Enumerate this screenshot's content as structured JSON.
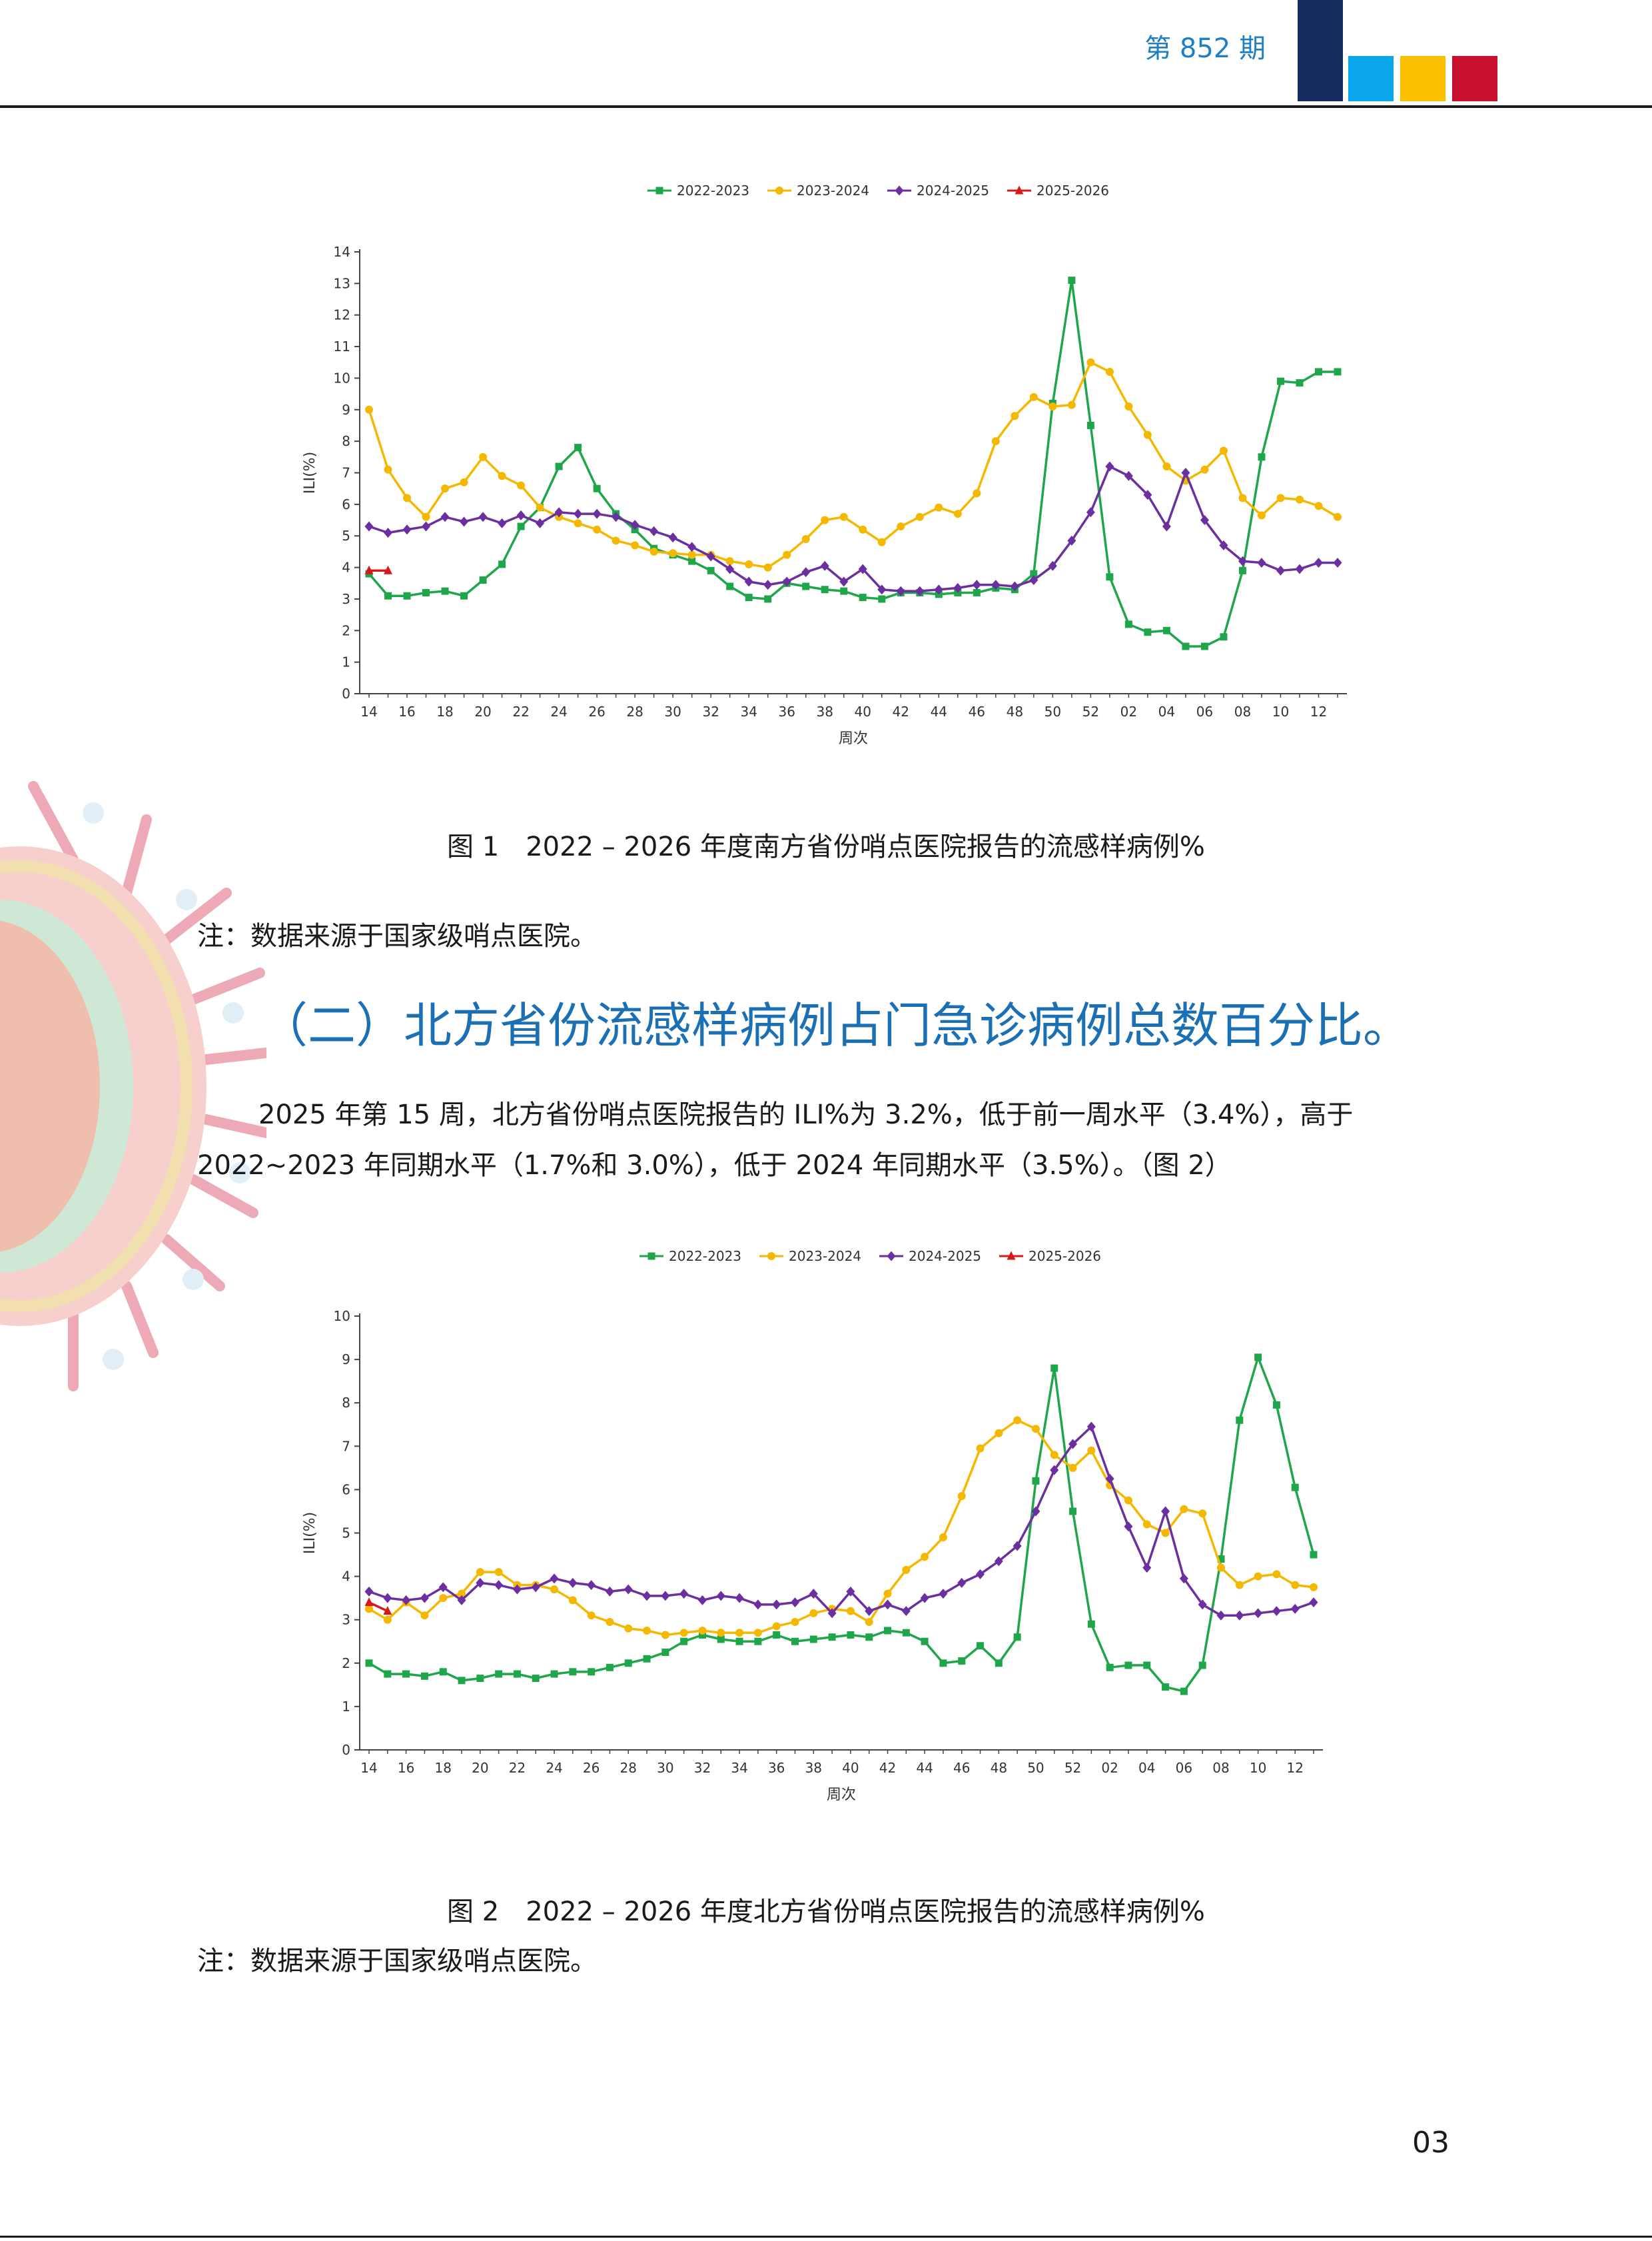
{
  "header": {
    "issue": "第 852 期",
    "bar_colors": [
      "#152a5e",
      "#0aa6ec",
      "#f9bf00",
      "#c8102e"
    ]
  },
  "figure1": {
    "caption": "图 1　2022 – 2026 年度南方省份哨点医院报告的流感样病例%",
    "note": "注：数据来源于国家级哨点医院。"
  },
  "section_heading": "（二）北方省份流感样病例占门急诊病例总数百分比。",
  "paragraph": "2025 年第 15 周，北方省份哨点医院报告的 ILI%为 3.2%，低于前一周水平（3.4%），高于 2022~2023 年同期水平（1.7%和 3.0%），低于 2024 年同期水平（3.5%）。（图 2）",
  "figure2": {
    "caption": "图 2　2022 – 2026 年度北方省份哨点医院报告的流感样病例%",
    "note": "注：数据来源于国家级哨点医院。"
  },
  "page_number": "03",
  "chart_data": [
    {
      "type": "line",
      "xlabel": "周次",
      "ylabel": "ILI(%)",
      "ylim": [
        0,
        14
      ],
      "y_ticks": [
        "0",
        "1",
        "2",
        "3",
        "4",
        "5",
        "6",
        "7",
        "8",
        "9",
        "10",
        "11",
        "12",
        "13",
        "14"
      ],
      "legend_position": "top",
      "x_tick_labels": [
        "14",
        "16",
        "18",
        "20",
        "22",
        "24",
        "26",
        "28",
        "30",
        "32",
        "34",
        "36",
        "38",
        "40",
        "42",
        "44",
        "46",
        "48",
        "50",
        "52",
        "02",
        "04",
        "06",
        "08",
        "10",
        "12"
      ],
      "series": [
        {
          "name": "2022-2023",
          "color": "#1fa64a",
          "marker": "square",
          "values": [
            3.8,
            3.1,
            3.1,
            3.2,
            3.25,
            3.1,
            3.6,
            4.1,
            5.3,
            5.9,
            7.2,
            7.8,
            6.5,
            5.7,
            5.2,
            4.6,
            4.4,
            4.2,
            3.9,
            3.4,
            3.05,
            3.0,
            3.5,
            3.4,
            3.3,
            3.25,
            3.05,
            3.0,
            3.2,
            3.2,
            3.15,
            3.2,
            3.2,
            3.35,
            3.3,
            3.8,
            9.2,
            13.1,
            8.5,
            3.7,
            2.2,
            1.95,
            2.0,
            1.5,
            1.5,
            1.8,
            3.9,
            7.5,
            9.9,
            9.85,
            10.2,
            10.2
          ]
        },
        {
          "name": "2023-2024",
          "color": "#f5b800",
          "marker": "circle",
          "values": [
            9.0,
            7.1,
            6.2,
            5.6,
            6.5,
            6.7,
            7.5,
            6.9,
            6.6,
            5.9,
            5.6,
            5.4,
            5.2,
            4.85,
            4.7,
            4.5,
            4.45,
            4.4,
            4.4,
            4.2,
            4.1,
            4.0,
            4.4,
            4.9,
            5.5,
            5.6,
            5.2,
            4.8,
            5.3,
            5.6,
            5.9,
            5.7,
            6.35,
            8.0,
            8.8,
            9.4,
            9.1,
            9.15,
            10.5,
            10.2,
            9.1,
            8.2,
            7.2,
            6.75,
            7.1,
            7.7,
            6.2,
            5.65,
            6.2,
            6.15,
            5.95,
            5.6
          ]
        },
        {
          "name": "2024-2025",
          "color": "#6b2fa0",
          "marker": "diamond",
          "values": [
            5.3,
            5.1,
            5.2,
            5.3,
            5.6,
            5.45,
            5.6,
            5.4,
            5.65,
            5.4,
            5.75,
            5.7,
            5.7,
            5.6,
            5.35,
            5.15,
            4.95,
            4.65,
            4.35,
            3.95,
            3.55,
            3.45,
            3.55,
            3.85,
            4.05,
            3.55,
            3.95,
            3.3,
            3.25,
            3.25,
            3.3,
            3.35,
            3.45,
            3.45,
            3.4,
            3.6,
            4.05,
            4.85,
            5.75,
            7.2,
            6.9,
            6.3,
            5.3,
            7.0,
            5.5,
            4.7,
            4.2,
            4.15,
            3.9,
            3.95,
            4.15,
            4.15
          ]
        },
        {
          "name": "2025-2026",
          "color": "#d7191c",
          "marker": "triangle",
          "values": [
            3.9,
            3.9
          ]
        }
      ]
    },
    {
      "type": "line",
      "xlabel": "周次",
      "ylabel": "ILI(%)",
      "ylim": [
        0,
        10
      ],
      "y_ticks": [
        "0",
        "1",
        "2",
        "3",
        "4",
        "5",
        "6",
        "7",
        "8",
        "9",
        "10"
      ],
      "legend_position": "top",
      "x_tick_labels": [
        "14",
        "16",
        "18",
        "20",
        "22",
        "24",
        "26",
        "28",
        "30",
        "32",
        "34",
        "36",
        "38",
        "40",
        "42",
        "44",
        "46",
        "48",
        "50",
        "52",
        "02",
        "04",
        "06",
        "08",
        "10",
        "12"
      ],
      "series": [
        {
          "name": "2022-2023",
          "color": "#1fa64a",
          "marker": "square",
          "values": [
            2.0,
            1.75,
            1.75,
            1.7,
            1.8,
            1.6,
            1.65,
            1.75,
            1.75,
            1.65,
            1.75,
            1.8,
            1.8,
            1.9,
            2.0,
            2.1,
            2.25,
            2.5,
            2.65,
            2.55,
            2.5,
            2.5,
            2.65,
            2.5,
            2.55,
            2.6,
            2.65,
            2.6,
            2.75,
            2.7,
            2.5,
            2.0,
            2.05,
            2.4,
            2.0,
            2.6,
            6.2,
            8.8,
            5.5,
            2.9,
            1.9,
            1.95,
            1.95,
            1.45,
            1.35,
            1.95,
            4.4,
            7.6,
            9.05,
            7.95,
            6.05,
            4.5
          ]
        },
        {
          "name": "2023-2024",
          "color": "#f5b800",
          "marker": "circle",
          "values": [
            3.25,
            3.0,
            3.4,
            3.1,
            3.5,
            3.6,
            4.1,
            4.1,
            3.8,
            3.8,
            3.7,
            3.45,
            3.1,
            2.95,
            2.8,
            2.75,
            2.65,
            2.7,
            2.75,
            2.7,
            2.7,
            2.7,
            2.85,
            2.95,
            3.15,
            3.25,
            3.2,
            2.95,
            3.6,
            4.15,
            4.45,
            4.9,
            5.85,
            6.95,
            7.3,
            7.6,
            7.4,
            6.8,
            6.5,
            6.9,
            6.1,
            5.75,
            5.2,
            5.0,
            5.55,
            5.45,
            4.2,
            3.8,
            4.0,
            4.05,
            3.8,
            3.75
          ]
        },
        {
          "name": "2024-2025",
          "color": "#6b2fa0",
          "marker": "diamond",
          "values": [
            3.65,
            3.5,
            3.45,
            3.5,
            3.75,
            3.45,
            3.85,
            3.8,
            3.7,
            3.75,
            3.95,
            3.85,
            3.8,
            3.65,
            3.7,
            3.55,
            3.55,
            3.6,
            3.45,
            3.55,
            3.5,
            3.35,
            3.35,
            3.4,
            3.6,
            3.15,
            3.65,
            3.2,
            3.35,
            3.2,
            3.5,
            3.6,
            3.85,
            4.05,
            4.35,
            4.7,
            5.5,
            6.45,
            7.05,
            7.45,
            6.25,
            5.15,
            4.2,
            5.5,
            3.95,
            3.35,
            3.1,
            3.1,
            3.15,
            3.2,
            3.25,
            3.4
          ]
        },
        {
          "name": "2025-2026",
          "color": "#d7191c",
          "marker": "triangle",
          "values": [
            3.4,
            3.2
          ]
        }
      ]
    }
  ]
}
